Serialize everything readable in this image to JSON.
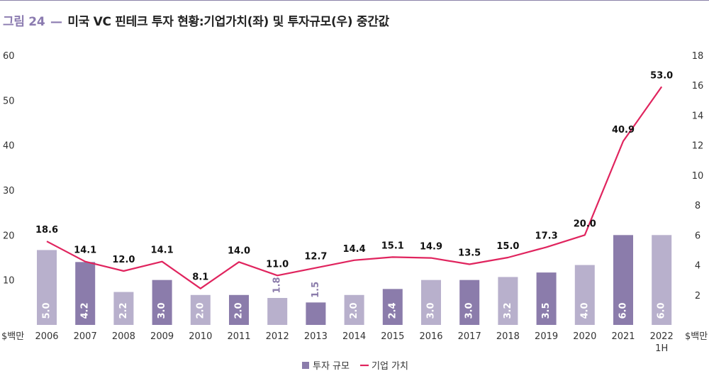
{
  "title": {
    "figure_no": "그림 24",
    "dash": "—",
    "text": "미국 VC 핀테크 투자 현황:기업가치(좌) 및 투자규모(우) 중간값"
  },
  "colors": {
    "bar_light": "#b8b0cc",
    "bar_dark": "#8b7cab",
    "line": "#e0245e",
    "title_accent": "#8b7bb0",
    "rule": "#8b82a8"
  },
  "chart_data": {
    "type": "bar+line",
    "categories": [
      "2006",
      "2007",
      "2008",
      "2009",
      "2010",
      "2011",
      "2012",
      "2013",
      "2014",
      "2015",
      "2016",
      "2017",
      "2018",
      "2019",
      "2020",
      "2021",
      "2022\n1H"
    ],
    "series": [
      {
        "name": "투자 규모",
        "type": "bar",
        "axis": "right",
        "values": [
          5.0,
          4.2,
          2.2,
          3.0,
          2.0,
          2.0,
          1.8,
          1.5,
          2.0,
          2.4,
          3.0,
          3.0,
          3.2,
          3.5,
          4.0,
          6.0,
          6.0
        ],
        "labels": [
          "5.0",
          "4.2",
          "2.2",
          "3.0",
          "2.0",
          "2.0",
          "1.8",
          "1.5",
          "2.0",
          "2.4",
          "3.0",
          "3.0",
          "3.2",
          "3.5",
          "4.0",
          "6.0",
          "6.0"
        ],
        "shade": [
          "light",
          "dark",
          "light",
          "dark",
          "light",
          "dark",
          "light",
          "dark",
          "light",
          "dark",
          "light",
          "dark",
          "light",
          "dark",
          "light",
          "dark",
          "light"
        ]
      },
      {
        "name": "기업 가치",
        "type": "line",
        "axis": "left",
        "values": [
          18.6,
          14.1,
          12.0,
          14.1,
          8.1,
          14.0,
          11.0,
          12.7,
          14.4,
          15.1,
          14.9,
          13.5,
          15.0,
          17.3,
          20.0,
          40.9,
          53.0
        ],
        "labels": [
          "18.6",
          "14.1",
          "12.0",
          "14.1",
          "8.1",
          "14.0",
          "11.0",
          "12.7",
          "14.4",
          "15.1",
          "14.9",
          "13.5",
          "15.0",
          "17.3",
          "20.0",
          "40.9",
          "53.0"
        ]
      }
    ],
    "y_left": {
      "ticks": [
        "10",
        "20",
        "30",
        "40",
        "50",
        "60"
      ],
      "ylim": [
        0,
        60
      ],
      "unit": "$백만"
    },
    "y_right": {
      "ticks": [
        "2",
        "4",
        "6",
        "8",
        "10",
        "12",
        "14",
        "16",
        "18"
      ],
      "ylim": [
        0,
        18
      ],
      "unit": "$백만"
    },
    "legend": {
      "position": "bottom-center"
    },
    "grid": false
  }
}
